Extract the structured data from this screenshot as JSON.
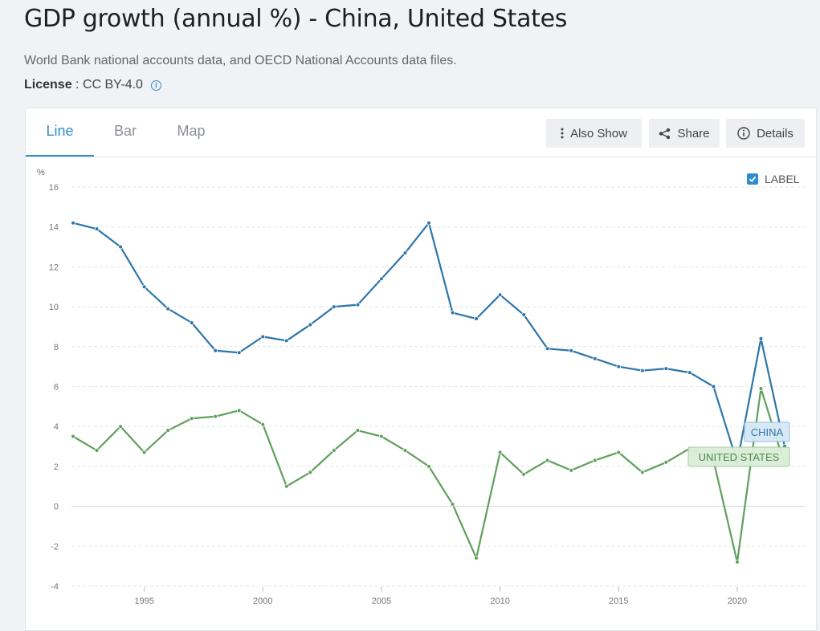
{
  "header": {
    "title": "GDP growth (annual %) - China, United States",
    "source": "World Bank national accounts data, and OECD National Accounts data files.",
    "license_label": "License",
    "license_value": "CC BY-4.0",
    "license_separator": " : "
  },
  "tabs": [
    {
      "label": "Line",
      "active": true
    },
    {
      "label": "Bar",
      "active": false
    },
    {
      "label": "Map",
      "active": false
    }
  ],
  "toolbar": {
    "also_show_label": "Also Show",
    "share_label": "Share",
    "details_label": "Details"
  },
  "label_toggle": {
    "label": "LABEL",
    "checked": true
  },
  "colors": {
    "accent": "#2f8ccd",
    "china": "#2e75a8",
    "united_states": "#5fa05b"
  },
  "chart_data": {
    "type": "line",
    "ylabel": "%",
    "ylim": [
      -4,
      16
    ],
    "yticks": [
      -4,
      -2,
      0,
      2,
      4,
      6,
      8,
      10,
      12,
      14,
      16
    ],
    "xticks": [
      1995,
      2000,
      2005,
      2010,
      2015,
      2020
    ],
    "x": [
      1992,
      1993,
      1994,
      1995,
      1996,
      1997,
      1998,
      1999,
      2000,
      2001,
      2002,
      2003,
      2004,
      2005,
      2006,
      2007,
      2008,
      2009,
      2010,
      2011,
      2012,
      2013,
      2014,
      2015,
      2016,
      2017,
      2018,
      2019,
      2020,
      2021,
      2022
    ],
    "grid": true,
    "series": [
      {
        "name": "CHINA",
        "color": "#2e75a8",
        "values": [
          14.2,
          13.9,
          13.0,
          11.0,
          9.9,
          9.2,
          7.8,
          7.7,
          8.5,
          8.3,
          9.1,
          10.0,
          10.1,
          11.4,
          12.7,
          14.2,
          9.7,
          9.4,
          10.6,
          9.6,
          7.9,
          7.8,
          7.4,
          7.0,
          6.8,
          6.9,
          6.7,
          6.0,
          2.2,
          8.4,
          3.0
        ]
      },
      {
        "name": "UNITED STATES",
        "color": "#5fa05b",
        "values": [
          3.5,
          2.8,
          4.0,
          2.7,
          3.8,
          4.4,
          4.5,
          4.8,
          4.1,
          1.0,
          1.7,
          2.8,
          3.8,
          3.5,
          2.8,
          2.0,
          0.1,
          -2.6,
          2.7,
          1.6,
          2.3,
          1.8,
          2.3,
          2.7,
          1.7,
          2.2,
          2.9,
          2.3,
          -2.8,
          5.9,
          2.1
        ]
      }
    ]
  }
}
